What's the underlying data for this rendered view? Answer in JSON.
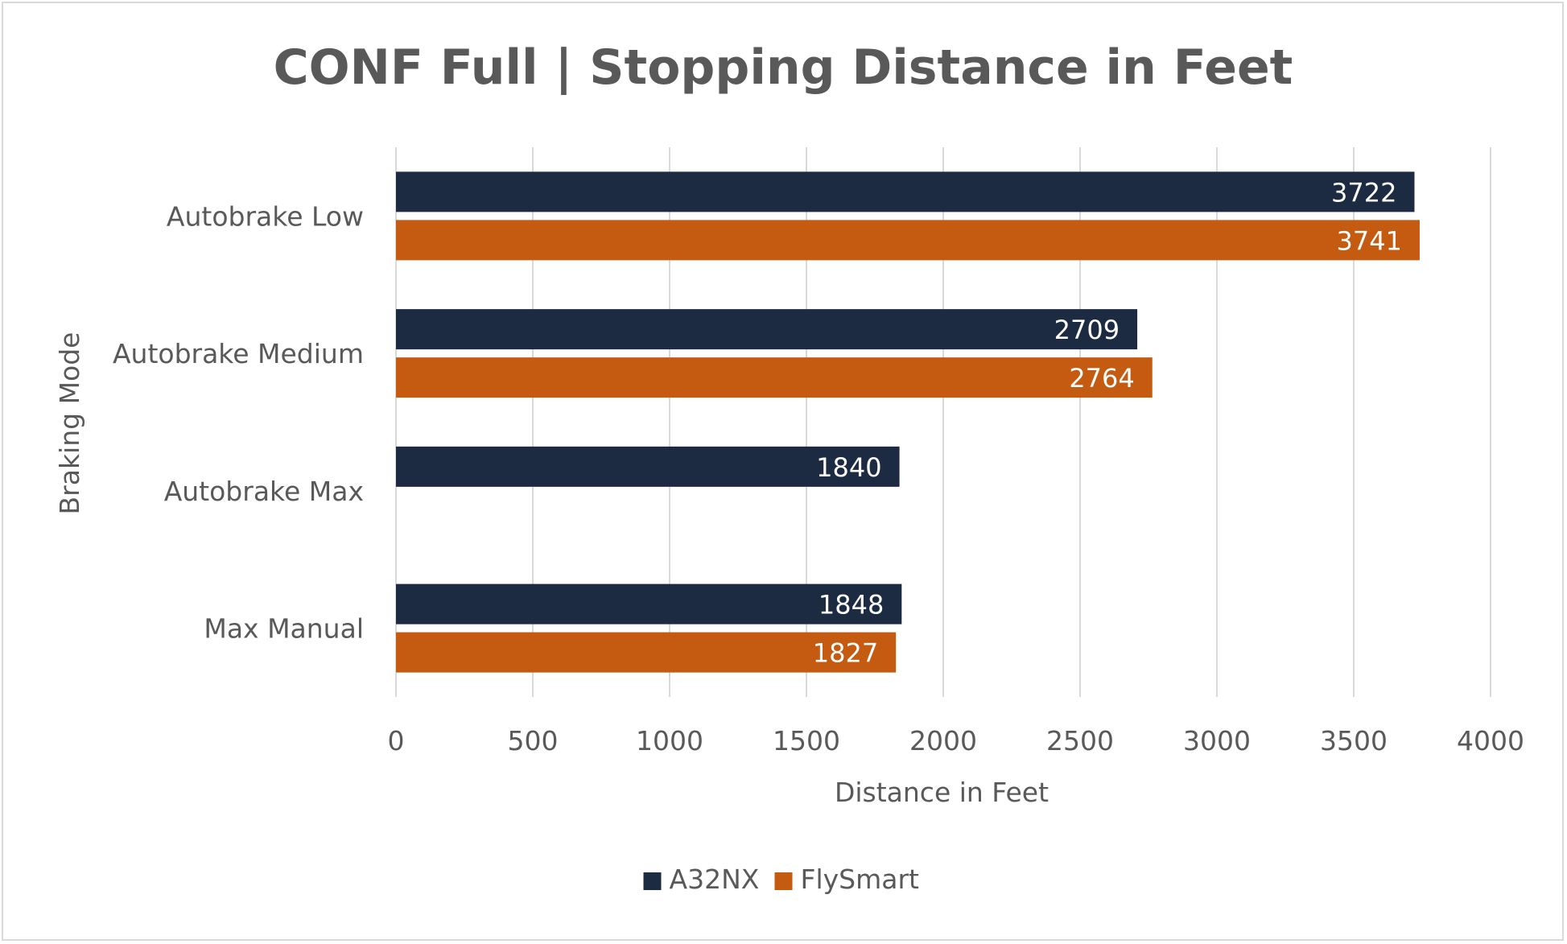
{
  "chart_data": {
    "type": "bar",
    "orientation": "horizontal",
    "title": "CONF Full | Stopping Distance in Feet",
    "xlabel": "Distance in Feet",
    "ylabel": "Braking Mode",
    "categories": [
      "Autobrake Low",
      "Autobrake Medium",
      "Autobrake Max",
      "Max Manual"
    ],
    "series": [
      {
        "name": "A32NX",
        "color": "#1c2b42",
        "values": [
          3722,
          2709,
          1840,
          1848
        ]
      },
      {
        "name": "FlySmart",
        "color": "#c55a11",
        "values": [
          3741,
          2764,
          null,
          1827
        ]
      }
    ],
    "xlim": [
      0,
      4000
    ],
    "xticks": [
      0,
      500,
      1000,
      1500,
      2000,
      2500,
      3000,
      3500,
      4000
    ],
    "grid": "vertical",
    "legend": "bottom-center",
    "data_labels": "inside-end"
  }
}
